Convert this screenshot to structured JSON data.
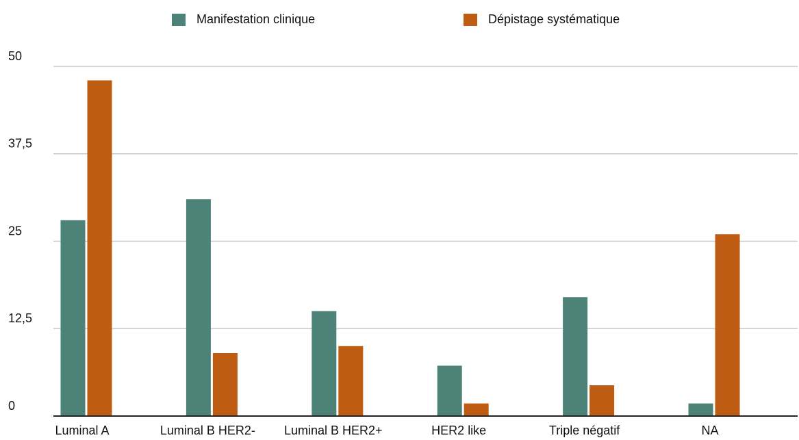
{
  "chart_data": {
    "type": "bar",
    "categories": [
      "Luminal A",
      "Luminal B HER2-",
      "Luminal B HER2+",
      "HER2 like",
      "Triple négatif",
      "NA"
    ],
    "series": [
      {
        "name": "Manifestation clinique",
        "color": "#4d8278",
        "values": [
          28,
          31,
          15,
          7.2,
          17,
          1.8
        ]
      },
      {
        "name": "Dépistage systématique",
        "color": "#be5c14",
        "values": [
          48,
          9,
          10,
          1.8,
          4.4,
          26
        ]
      }
    ],
    "ylim": [
      0,
      50
    ],
    "yticks": [
      0,
      {
        "value": 12.5,
        "label": "12,5"
      },
      25,
      {
        "value": 37.5,
        "label": "37,5"
      },
      50
    ],
    "grid": true,
    "legend": "top"
  }
}
